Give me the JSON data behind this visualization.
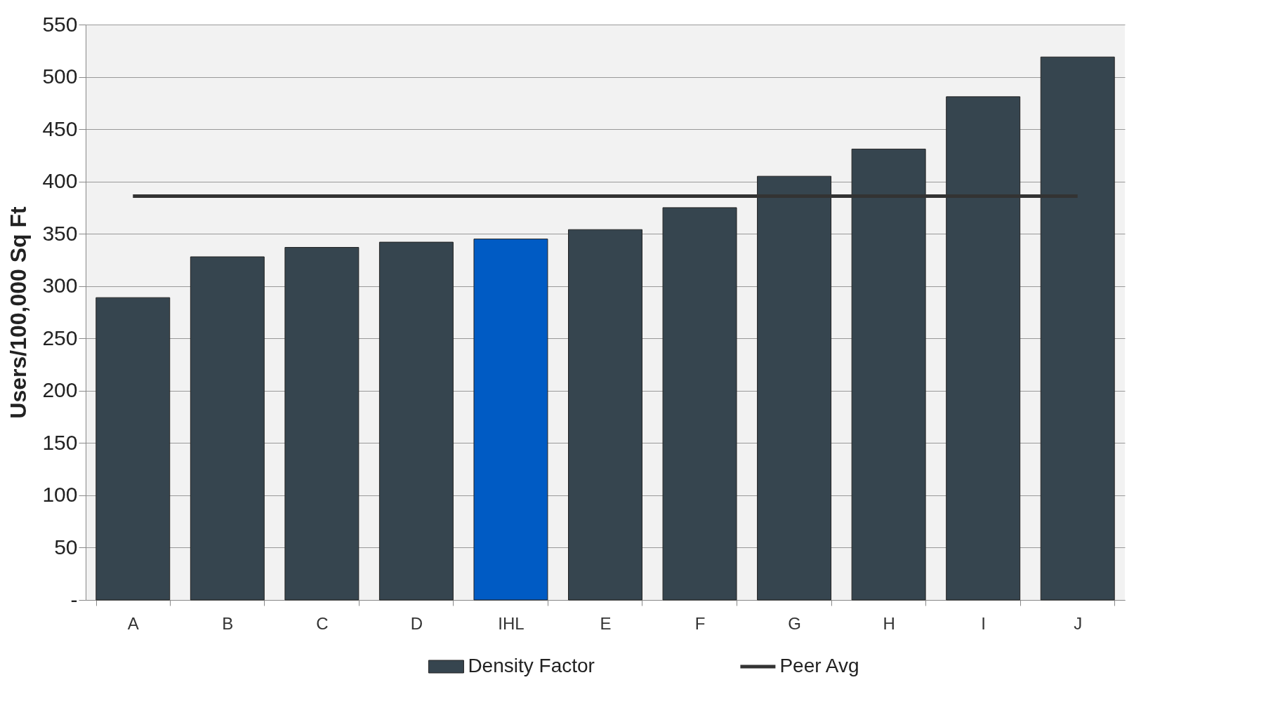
{
  "chart_data": {
    "type": "bar",
    "ylabel": "Users/100,000 Sq Ft",
    "categories": [
      "A",
      "B",
      "C",
      "D",
      "IHL",
      "E",
      "F",
      "G",
      "H",
      "I",
      "J"
    ],
    "series": [
      {
        "name": "Density Factor",
        "color": "#36454f",
        "colors": [
          "#36454f",
          "#36454f",
          "#36454f",
          "#36454f",
          "#005bc4",
          "#36454f",
          "#36454f",
          "#36454f",
          "#36454f",
          "#36454f",
          "#36454f"
        ],
        "values": [
          289,
          328,
          337,
          342,
          345,
          354,
          375,
          405,
          431,
          481,
          519
        ]
      },
      {
        "name": "Peer Avg",
        "type": "line",
        "color": "#333333",
        "values": [
          386,
          386,
          386,
          386,
          386,
          386,
          386,
          386,
          386,
          386,
          386
        ]
      }
    ],
    "ylim": [
      0,
      550
    ],
    "yticks": [
      {
        "value": 0,
        "label": "-"
      },
      50,
      100,
      150,
      200,
      250,
      300,
      350,
      400,
      450,
      500,
      550
    ],
    "grid": "y",
    "legend": "bottom"
  }
}
